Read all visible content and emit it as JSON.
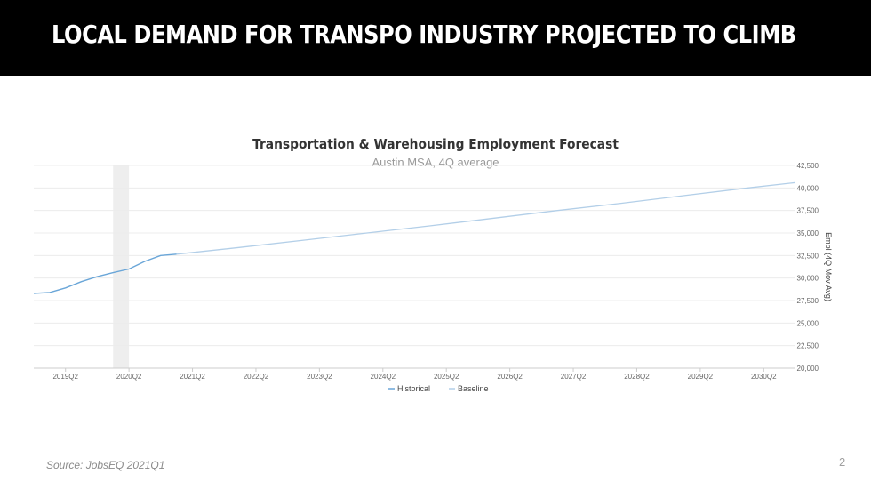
{
  "slide": {
    "title": "LOCAL DEMAND FOR TRANSPO INDUSTRY PROJECTED TO CLIMB",
    "source": "Source: JobsEQ 2021Q1",
    "page_number": "2"
  },
  "chart_data": {
    "type": "line",
    "title": "Transportation  & Warehousing Employment Forecast",
    "subtitle": "Austin MSA, 4Q average",
    "ylabel": "Empl (4Q Mov Avg)",
    "ylim": [
      20000,
      42500
    ],
    "yticks": [
      "42,500",
      "40,000",
      "37,500",
      "35,000",
      "32,500",
      "30,000",
      "27,500",
      "25,000",
      "22,500",
      "20,000"
    ],
    "yaxis_position": "right",
    "xlim": [
      "2018Q4",
      "2030Q4"
    ],
    "xticks": [
      "2019Q2",
      "2020Q2",
      "2021Q2",
      "2022Q2",
      "2023Q2",
      "2024Q2",
      "2025Q2",
      "2026Q2",
      "2027Q2",
      "2028Q2",
      "2029Q2",
      "2030Q2"
    ],
    "shaded_period": [
      "2020Q1",
      "2020Q2"
    ],
    "grid": true,
    "legend_position": "bottom",
    "series": [
      {
        "name": "Historical",
        "color": "#6aa6d8",
        "x": [
          "2018Q4",
          "2019Q1",
          "2019Q2",
          "2019Q3",
          "2019Q4",
          "2020Q1",
          "2020Q2",
          "2020Q3",
          "2020Q4",
          "2021Q1"
        ],
        "values": [
          28300,
          28400,
          28900,
          29600,
          30150,
          30600,
          31000,
          31850,
          32500,
          32650
        ]
      },
      {
        "name": "Baseline",
        "color": "#b3cfe8",
        "x": [
          "2021Q1",
          "2022Q1",
          "2023Q1",
          "2024Q1",
          "2025Q1",
          "2026Q1",
          "2027Q1",
          "2028Q1",
          "2029Q1",
          "2030Q1",
          "2030Q4"
        ],
        "values": [
          32650,
          33400,
          34200,
          35000,
          35800,
          36650,
          37500,
          38300,
          39150,
          40000,
          40600
        ]
      }
    ]
  }
}
